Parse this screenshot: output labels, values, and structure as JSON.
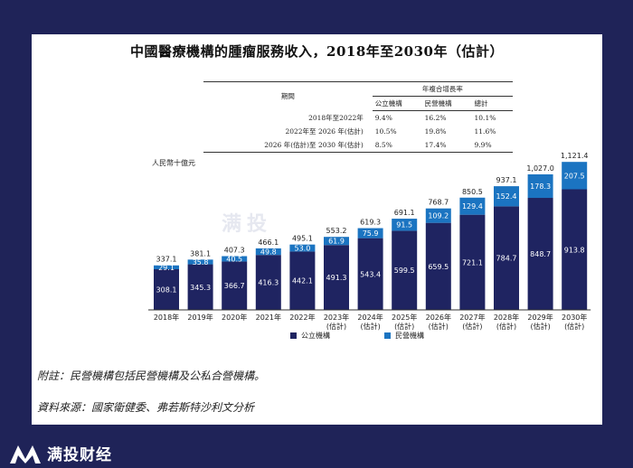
{
  "title": "中國醫療機構的腫瘤服務收入，2018年至2030年（估計）",
  "cagr_table": {
    "group_header": "年複合增長率",
    "col_period": "期間",
    "col_public": "公立機構",
    "col_private": "民營機構",
    "col_total": "總計",
    "rows": [
      {
        "period": "2018年至2022年",
        "public": "9.4%",
        "private": "16.2%",
        "total": "10.1%"
      },
      {
        "period": "2022年至 2026 年(估計)",
        "public": "10.5%",
        "private": "19.8%",
        "total": "11.6%"
      },
      {
        "period": "2026 年(估計)至 2030 年(估計)",
        "public": "8.5%",
        "private": "17.4%",
        "total": "9.9%"
      }
    ]
  },
  "chart_data": {
    "type": "bar",
    "stacked": true,
    "unit_label": "人民幣十億元",
    "categories": [
      "2018年",
      "2019年",
      "2020年",
      "2021年",
      "2022年",
      "2023年\n(估計)",
      "2024年\n(估計)",
      "2025年\n(估計)",
      "2026年\n(估計)",
      "2027年\n(估計)",
      "2028年\n(估計)",
      "2029年\n(估計)",
      "2030年\n(估計)"
    ],
    "series": [
      {
        "name": "公立機構",
        "color": "#1f2461",
        "values": [
          308.1,
          345.3,
          366.7,
          416.3,
          442.1,
          491.3,
          543.4,
          599.5,
          659.5,
          721.1,
          784.7,
          848.7,
          913.8
        ]
      },
      {
        "name": "民營機構",
        "color": "#1b74c1",
        "values": [
          29.1,
          35.8,
          40.5,
          49.8,
          53.0,
          61.9,
          75.9,
          91.5,
          109.2,
          129.4,
          152.4,
          178.3,
          207.5
        ]
      }
    ],
    "totals": [
      "337.1",
      "381.1",
      "407.3",
      "466.1",
      "495.1",
      "553.2",
      "619.3",
      "691.1",
      "768.7",
      "850.5",
      "937.1",
      "1,027.0",
      "1,121.4"
    ],
    "ylim": [
      0,
      1150
    ],
    "legend_position": "bottom"
  },
  "notes": {
    "note": "附註：民營機構包括民營機構及公私合營機構。",
    "source": "資料來源：國家衛健委、弗若斯特沙利文分析"
  },
  "brand": {
    "name": "满投财经",
    "watermark": "满投"
  }
}
